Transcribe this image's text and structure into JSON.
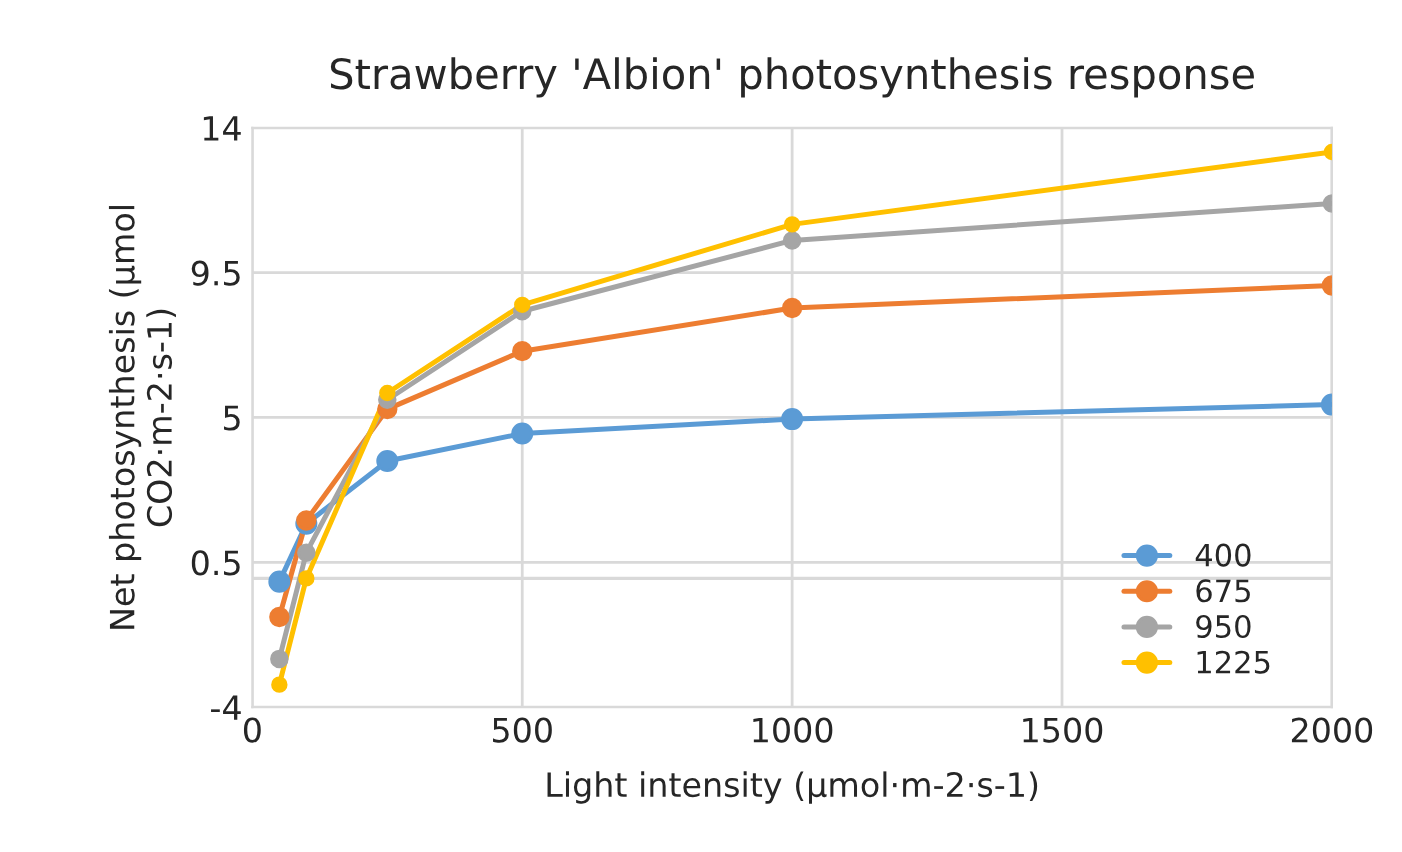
{
  "chart_data": {
    "type": "line",
    "title": "Strawberry 'Albion' photosynthesis response",
    "xlabel": "Light intensity (µmol·m-2·s-1)",
    "ylabel": "Net photosynthesis (µmol\nCO2·m-2·s-1)",
    "x": [
      50,
      100,
      250,
      500,
      1000,
      2000
    ],
    "series": [
      {
        "name": "400",
        "color": "#5b9bd5",
        "values": [
          -0.1,
          1.7,
          3.65,
          4.5,
          4.95,
          5.4
        ]
      },
      {
        "name": "675",
        "color": "#ed7d31",
        "values": [
          -1.2,
          1.8,
          5.26,
          7.06,
          8.4,
          9.1
        ]
      },
      {
        "name": "950",
        "color": "#a5a5a5",
        "values": [
          -2.5,
          0.8,
          5.55,
          8.3,
          10.5,
          11.65
        ]
      },
      {
        "name": "1225",
        "color": "#ffc000",
        "values": [
          -3.3,
          0.0,
          5.76,
          8.5,
          11.0,
          13.25
        ]
      }
    ],
    "xlim": [
      0,
      2000
    ],
    "xticks": [
      0,
      500,
      1000,
      1500,
      2000
    ],
    "ylim": [
      -4,
      14
    ],
    "yticks": [
      -4,
      0.5,
      5,
      9.5,
      14
    ],
    "ref_lines": [
      {
        "axis": "y",
        "value": 0,
        "color": "#d9d9d9"
      }
    ],
    "grid": true,
    "legend": "bottom right",
    "marker": "circle",
    "line_style": "solid"
  }
}
